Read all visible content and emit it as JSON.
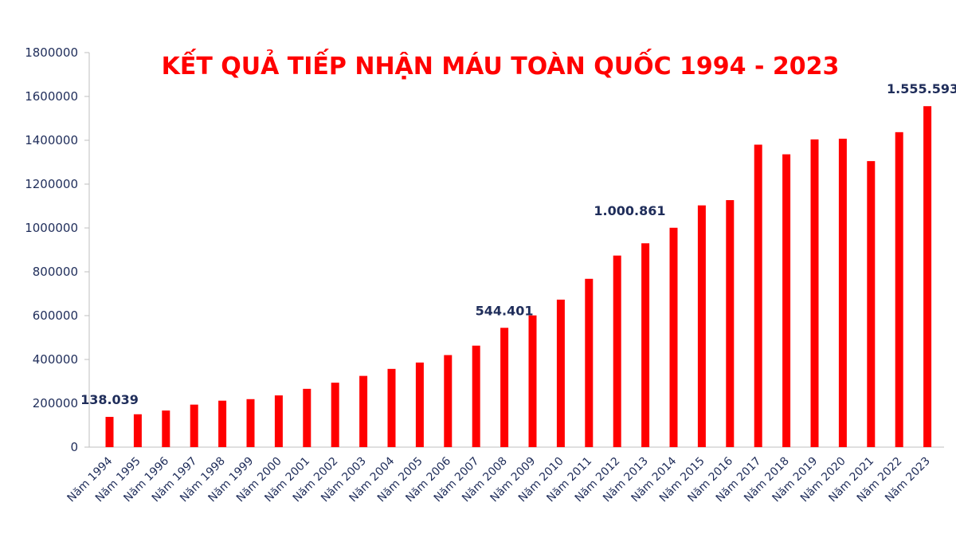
{
  "chart_data": {
    "type": "bar",
    "title": "KẾT QUẢ TIẾP NHẬN MÁU TOÀN QUỐC 1994 - 2023",
    "xlabel": "",
    "ylabel": "",
    "ylim": [
      0,
      1800000
    ],
    "yticks": [
      "0",
      "200000",
      "400000",
      "600000",
      "800000",
      "1000000",
      "1200000",
      "1400000",
      "1600000",
      "1800000"
    ],
    "grid": false,
    "legend": "none",
    "bar_color": "#ff0000",
    "label_color": "#1f2d5a",
    "categories": [
      "Năm 1994",
      "Năm 1995",
      "Năm 1996",
      "Năm 1997",
      "Năm 1998",
      "Năm 1999",
      "Năm 2000",
      "Năm 2001",
      "Năm 2002",
      "Năm 2003",
      "Năm 2004",
      "Năm 2005",
      "Năm 2006",
      "Năm 2007",
      "Năm 2008",
      "Năm 2009",
      "Năm 2010",
      "Năm 2011",
      "Năm 2012",
      "Năm 2013",
      "Năm 2014",
      "Năm 2015",
      "Năm 2016",
      "Năm 2017",
      "Năm 2018",
      "Năm 2019",
      "Năm 2020",
      "Năm 2021",
      "Năm 2022",
      "Năm 2023"
    ],
    "values": [
      138039,
      150000,
      167000,
      194000,
      212000,
      219000,
      236000,
      266000,
      294000,
      325000,
      357000,
      386000,
      420000,
      463000,
      544401,
      601000,
      673000,
      768000,
      874000,
      930000,
      1000861,
      1103000,
      1127000,
      1380000,
      1336000,
      1404000,
      1407000,
      1305000,
      1437000,
      1555593
    ],
    "annotations": [
      {
        "index": 0,
        "text": "138.039"
      },
      {
        "index": 14,
        "text": "544.401"
      },
      {
        "index": 20,
        "text": "1.000.861"
      },
      {
        "index": 29,
        "text": "1.555.593"
      }
    ]
  }
}
